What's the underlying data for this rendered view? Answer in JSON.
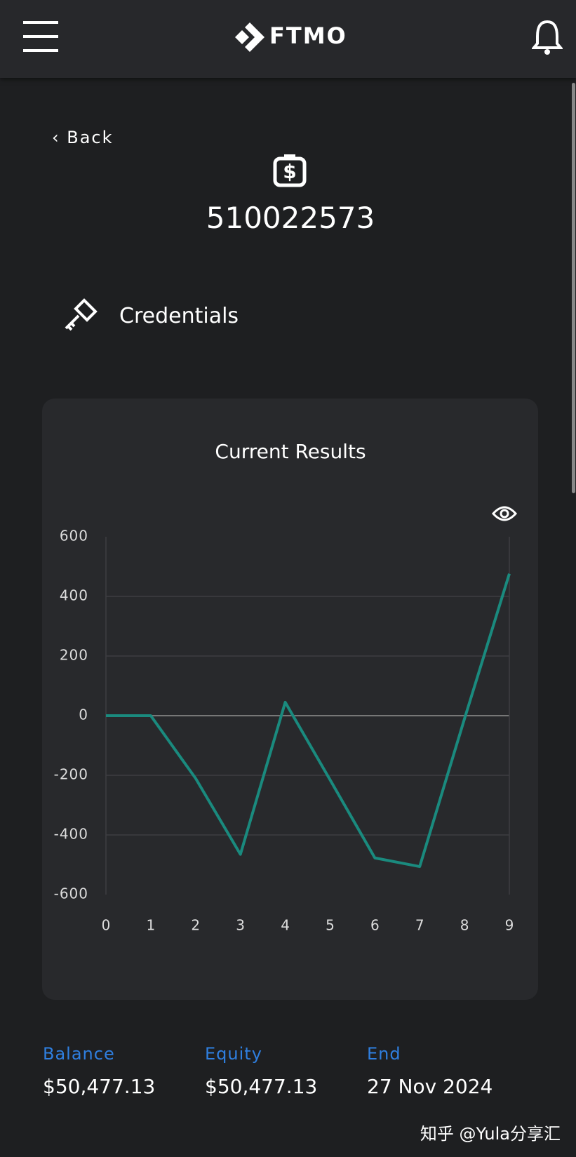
{
  "header": {
    "logo": "FTMO"
  },
  "back": "Back",
  "account": "510022573",
  "credentials": "Credentials",
  "chart_data": {
    "type": "line",
    "title": "Current Results",
    "x": [
      0,
      1,
      2,
      3,
      4,
      5,
      6,
      7,
      8,
      9
    ],
    "series": [
      {
        "color": "#1a8a7e",
        "values": [
          0,
          0,
          -210,
          -465,
          45,
          -215,
          -477,
          -506,
          -10,
          476
        ]
      }
    ],
    "xlim": [
      0,
      9
    ],
    "xticks": [
      0,
      1,
      2,
      3,
      4,
      5,
      6,
      7,
      8,
      9
    ],
    "ylim": [
      -600,
      600
    ],
    "yticks": [
      -600,
      -400,
      -200,
      0,
      200,
      400,
      600
    ],
    "grid": true
  },
  "stats": [
    {
      "label": "Balance",
      "value": "$50,477.13"
    },
    {
      "label": "Equity",
      "value": "$50,477.13"
    },
    {
      "label": "End",
      "value": "27 Nov 2024"
    }
  ],
  "watermark": "知乎 @Yula分享汇"
}
